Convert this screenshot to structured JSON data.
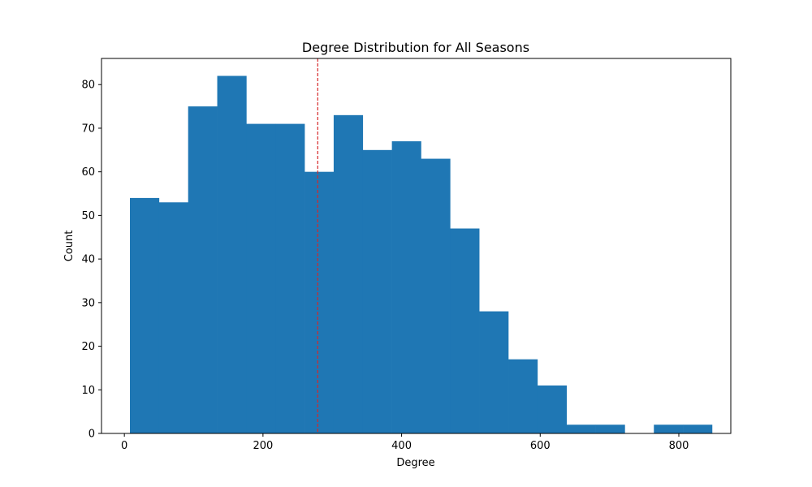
{
  "chart_data": {
    "type": "bar",
    "title": "Degree Distribution for All Seasons",
    "xlabel": "Degree",
    "ylabel": "Count",
    "xlim": [
      -33,
      875
    ],
    "ylim": [
      0,
      86
    ],
    "xticks": [
      0,
      200,
      400,
      600,
      800
    ],
    "yticks": [
      0,
      10,
      20,
      30,
      40,
      50,
      60,
      70,
      80
    ],
    "grid": false,
    "bar_color": "#1f77b4",
    "bin_edges": [
      8,
      50,
      92,
      134,
      176,
      218,
      260,
      302,
      344,
      386,
      428,
      470,
      512,
      554,
      596,
      638,
      680,
      722,
      764,
      806,
      848
    ],
    "values": [
      54,
      53,
      75,
      82,
      71,
      71,
      60,
      73,
      65,
      67,
      63,
      47,
      28,
      17,
      11,
      2,
      2,
      0,
      2,
      2
    ],
    "reference_line": {
      "x": 279,
      "style": "dashed",
      "color": "#d62728"
    }
  }
}
